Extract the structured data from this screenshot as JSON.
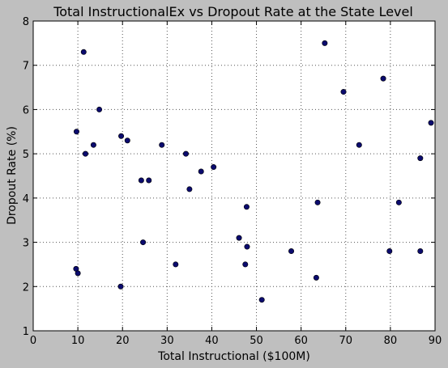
{
  "chart_data": {
    "type": "scatter",
    "title": "Total InstructionalEx vs Dropout Rate at the State Level",
    "xlabel": "Total Instructional ($100M)",
    "ylabel": "Dropout Rate (%)",
    "xlim": [
      0,
      90
    ],
    "ylim": [
      1,
      8
    ],
    "xticks": [
      "0",
      "10",
      "20",
      "30",
      "40",
      "50",
      "60",
      "70",
      "80",
      "90"
    ],
    "yticks": [
      "1",
      "2",
      "3",
      "4",
      "5",
      "6",
      "7",
      "8"
    ],
    "grid": true,
    "colors": {
      "marker_fill": "#0b0b6e",
      "background": "#ffffff",
      "figure": "#bfbfbf",
      "grid": "#555555"
    },
    "points": [
      {
        "x": 11.3,
        "y": 7.3
      },
      {
        "x": 65.3,
        "y": 7.5
      },
      {
        "x": 78.4,
        "y": 6.7
      },
      {
        "x": 69.5,
        "y": 6.4
      },
      {
        "x": 14.8,
        "y": 6.0
      },
      {
        "x": 89.1,
        "y": 5.7
      },
      {
        "x": 9.7,
        "y": 5.5
      },
      {
        "x": 19.7,
        "y": 5.4
      },
      {
        "x": 21.1,
        "y": 5.3
      },
      {
        "x": 13.5,
        "y": 5.2
      },
      {
        "x": 28.8,
        "y": 5.2
      },
      {
        "x": 73.0,
        "y": 5.2
      },
      {
        "x": 11.7,
        "y": 5.0
      },
      {
        "x": 34.2,
        "y": 5.0
      },
      {
        "x": 86.7,
        "y": 4.9
      },
      {
        "x": 40.4,
        "y": 4.7
      },
      {
        "x": 37.6,
        "y": 4.6
      },
      {
        "x": 24.2,
        "y": 4.4
      },
      {
        "x": 25.9,
        "y": 4.4
      },
      {
        "x": 35.0,
        "y": 4.2
      },
      {
        "x": 63.7,
        "y": 3.9
      },
      {
        "x": 81.9,
        "y": 3.9
      },
      {
        "x": 47.8,
        "y": 3.8
      },
      {
        "x": 46.1,
        "y": 3.1
      },
      {
        "x": 24.6,
        "y": 3.0
      },
      {
        "x": 47.9,
        "y": 2.9
      },
      {
        "x": 57.8,
        "y": 2.8
      },
      {
        "x": 79.8,
        "y": 2.8
      },
      {
        "x": 86.7,
        "y": 2.8
      },
      {
        "x": 31.9,
        "y": 2.5
      },
      {
        "x": 47.5,
        "y": 2.5
      },
      {
        "x": 9.6,
        "y": 2.4
      },
      {
        "x": 10.0,
        "y": 2.3
      },
      {
        "x": 63.4,
        "y": 2.2
      },
      {
        "x": 19.6,
        "y": 2.0
      },
      {
        "x": 51.2,
        "y": 1.7
      }
    ]
  }
}
